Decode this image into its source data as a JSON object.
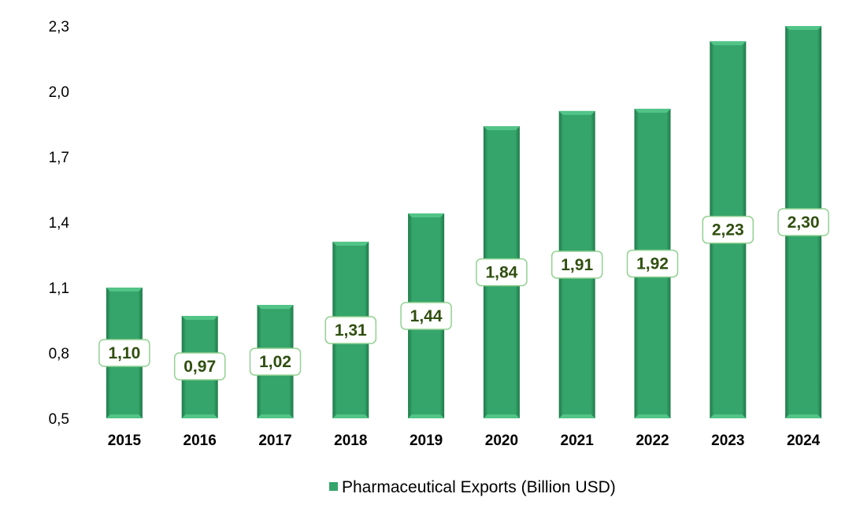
{
  "chart_data": {
    "type": "bar",
    "categories": [
      "2015",
      "2016",
      "2017",
      "2018",
      "2019",
      "2020",
      "2021",
      "2022",
      "2023",
      "2024"
    ],
    "series": [
      {
        "name": "Pharmaceutical Exports (Billion USD)",
        "values": [
          1.1,
          0.97,
          1.02,
          1.31,
          1.44,
          1.84,
          1.91,
          1.92,
          2.23,
          2.3
        ],
        "data_labels": [
          "1,10",
          "0,97",
          "1,02",
          "1,31",
          "1,44",
          "1,84",
          "1,91",
          "1,92",
          "2,23",
          "2,30"
        ]
      }
    ],
    "ylim": [
      0.5,
      2.3
    ],
    "yticks": [
      0.5,
      0.8,
      1.1,
      1.4,
      1.7,
      2.0,
      2.3
    ],
    "ytick_labels": [
      "0,5",
      "0,8",
      "1,1",
      "1,4",
      "1,7",
      "2,0",
      "2,3"
    ],
    "grid": false,
    "legend_position": "bottom-center",
    "colors": {
      "bar": "#35a56b",
      "bar_light": "#52c487",
      "bar_dark": "#1f7a4a",
      "label_text": "#2f4f0f",
      "label_border": "#92d192"
    }
  }
}
